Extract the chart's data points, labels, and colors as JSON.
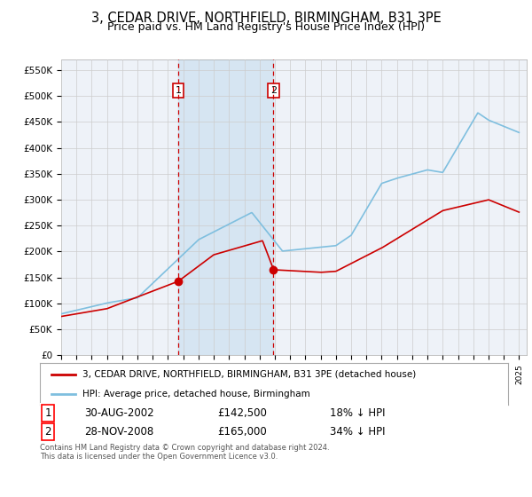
{
  "title": "3, CEDAR DRIVE, NORTHFIELD, BIRMINGHAM, B31 3PE",
  "subtitle": "Price paid vs. HM Land Registry's House Price Index (HPI)",
  "title_fontsize": 10.5,
  "subtitle_fontsize": 9,
  "ylim": [
    0,
    570000
  ],
  "yticks": [
    0,
    50000,
    100000,
    150000,
    200000,
    250000,
    300000,
    350000,
    400000,
    450000,
    500000,
    550000
  ],
  "purchase1_date_num": 2002.66,
  "purchase1_price": 142500,
  "purchase2_date_num": 2008.91,
  "purchase2_price": 165000,
  "legend_entries": [
    "3, CEDAR DRIVE, NORTHFIELD, BIRMINGHAM, B31 3PE (detached house)",
    "HPI: Average price, detached house, Birmingham"
  ],
  "annotation1": [
    "1",
    "30-AUG-2002",
    "£142,500",
    "18% ↓ HPI"
  ],
  "annotation2": [
    "2",
    "28-NOV-2008",
    "£165,000",
    "34% ↓ HPI"
  ],
  "footer": "Contains HM Land Registry data © Crown copyright and database right 2024.\nThis data is licensed under the Open Government Licence v3.0.",
  "hpi_color": "#7fbfdf",
  "price_color": "#cc0000",
  "bg_color": "#ffffff",
  "plot_bg_color": "#eef2f8",
  "grid_color": "#cccccc",
  "vline_color": "#cc0000",
  "shade_color": "#cce0f0"
}
